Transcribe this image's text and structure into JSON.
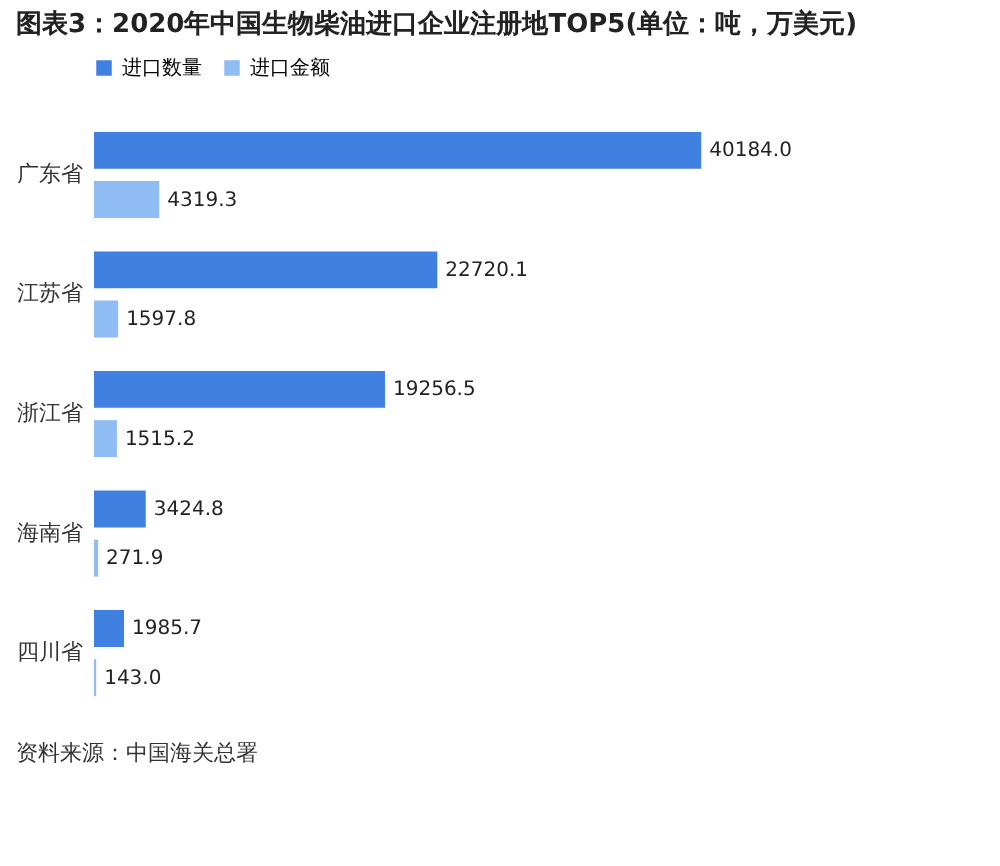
{
  "chart_data": {
    "type": "bar",
    "orientation": "horizontal",
    "title": "图表3：2020年中国生物柴油进口企业注册地TOP5(单位：吨，万美元)",
    "categories": [
      "广东省",
      "江苏省",
      "浙江省",
      "海南省",
      "四川省"
    ],
    "series": [
      {
        "name": "进口数量",
        "color": "#3f80e0",
        "values": [
          40184.0,
          22720.1,
          19256.5,
          3424.8,
          1985.7
        ],
        "value_labels": [
          "40184.0",
          "22720.1",
          "19256.5",
          "3424.8",
          "1985.7"
        ]
      },
      {
        "name": "进口金额",
        "color": "#8fbcf2",
        "values": [
          4319.3,
          1597.8,
          1515.2,
          271.9,
          143.0
        ],
        "value_labels": [
          "4319.3",
          "1597.8",
          "1515.2",
          "271.9",
          "143.0"
        ]
      }
    ],
    "legend": "top",
    "tick_labels": "y",
    "annotations": [
      "资料来源：中国海关总署"
    ]
  }
}
